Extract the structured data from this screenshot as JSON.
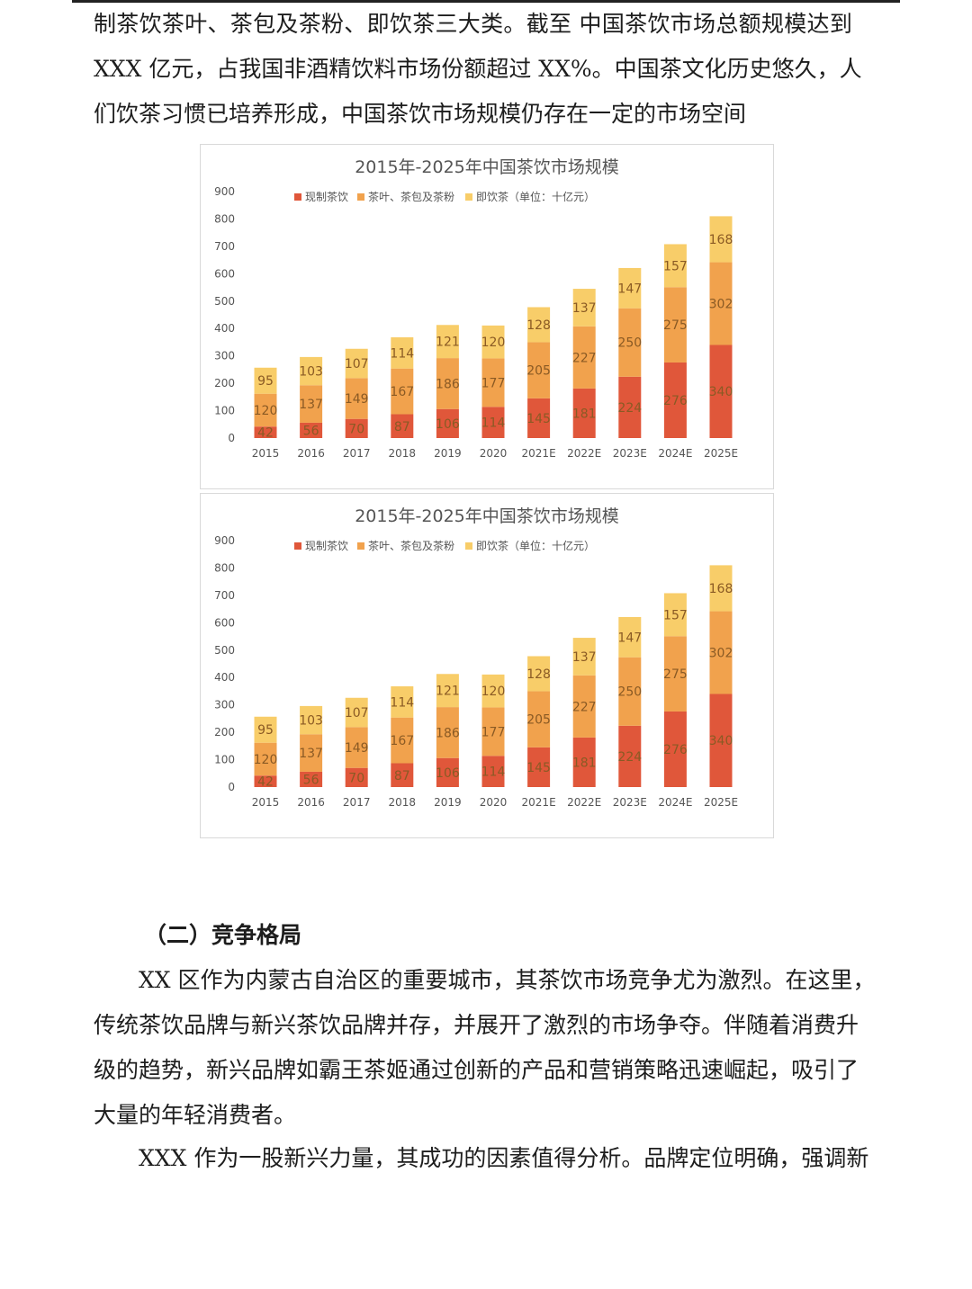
{
  "intro_lines": [
    "制茶饮茶叶、茶包及茶粉、即饮茶三大类。截至 中国茶饮市场总额规模达到",
    "XXX 亿元，占我国非酒精饮料市场份额超过 XX%。中国茶文化历史悠久，人",
    "们饮茶习惯已培养形成，中国茶饮市场规模仍存在一定的市场空间"
  ],
  "section_heading": "（二）竞争格局",
  "body_lines": [
    "XX 区作为内蒙古自治区的重要城市，其茶饮市场竞争尤为激烈。在这里，",
    "传统茶饮品牌与新兴茶饮品牌并存，并展开了激烈的市场争夺。伴随着消费升",
    "级的趋势，新兴品牌如霸王茶姬通过创新的产品和营销策略迅速崛起，吸引了",
    "大量的年轻消费者。",
    "XXX 作为一股新兴力量，其成功的因素值得分析。品牌定位明确，强调新"
  ],
  "chart_data": [
    {
      "type": "bar",
      "stacked": true,
      "title": "2015年-2025年中国茶饮市场规模",
      "legend_unit": "（单位：十亿元）",
      "legend_position": "top",
      "categories": [
        "2015",
        "2016",
        "2017",
        "2018",
        "2019",
        "2020",
        "2021E",
        "2022E",
        "2023E",
        "2024E",
        "2025E"
      ],
      "series": [
        {
          "name": "现制茶饮",
          "color": "#e0573a",
          "values": [
            42,
            56,
            70,
            87,
            106,
            114,
            145,
            181,
            224,
            276,
            340
          ]
        },
        {
          "name": "茶叶、茶包及茶粉",
          "color": "#f1a24d",
          "values": [
            120,
            137,
            149,
            167,
            186,
            177,
            205,
            227,
            250,
            275,
            302
          ]
        },
        {
          "name": "即饮茶",
          "color": "#f8cd69",
          "values": [
            95,
            103,
            107,
            114,
            121,
            120,
            128,
            137,
            147,
            157,
            168
          ]
        }
      ],
      "yticks": [
        "0",
        "100",
        "200",
        "300",
        "400",
        "500",
        "600",
        "700",
        "800",
        "900"
      ],
      "ylim": [
        0,
        900
      ],
      "grid": false
    },
    {
      "type": "bar",
      "stacked": true,
      "title": "2015年-2025年中国茶饮市场规模",
      "legend_unit": "（单位：十亿元）",
      "legend_position": "top",
      "categories": [
        "2015",
        "2016",
        "2017",
        "2018",
        "2019",
        "2020",
        "2021E",
        "2022E",
        "2023E",
        "2024E",
        "2025E"
      ],
      "series": [
        {
          "name": "现制茶饮",
          "color": "#e0573a",
          "values": [
            42,
            56,
            70,
            87,
            106,
            114,
            145,
            181,
            224,
            276,
            340
          ]
        },
        {
          "name": "茶叶、茶包及茶粉",
          "color": "#f1a24d",
          "values": [
            120,
            137,
            149,
            167,
            186,
            177,
            205,
            227,
            250,
            275,
            302
          ]
        },
        {
          "name": "即饮茶",
          "color": "#f8cd69",
          "values": [
            95,
            103,
            107,
            114,
            121,
            120,
            128,
            137,
            147,
            157,
            168
          ]
        }
      ],
      "yticks": [
        "0",
        "100",
        "200",
        "300",
        "400",
        "500",
        "600",
        "700",
        "800",
        "900"
      ],
      "ylim": [
        0,
        900
      ],
      "grid": false
    }
  ]
}
